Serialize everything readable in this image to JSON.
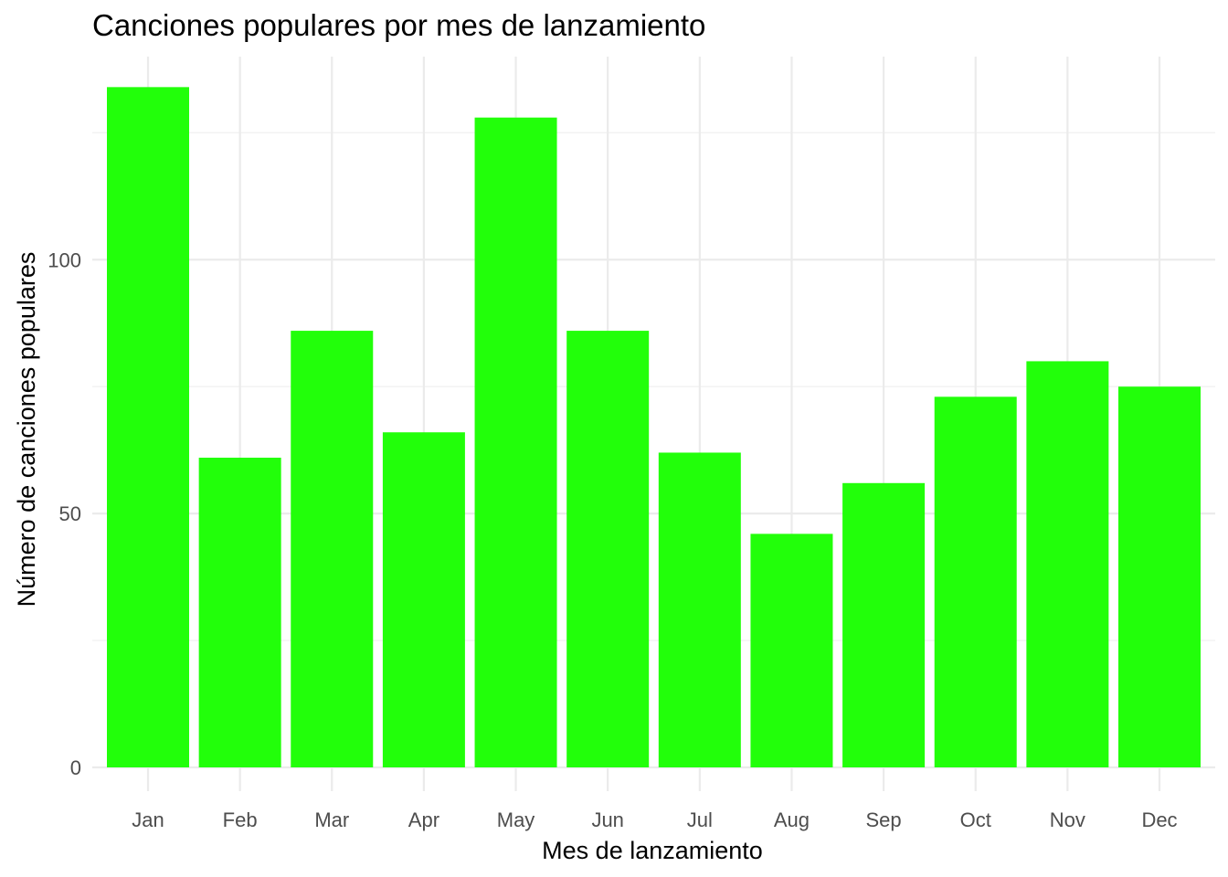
{
  "chart_data": {
    "type": "bar",
    "title": "Canciones populares por mes de lanzamiento",
    "xlabel": "Mes de lanzamiento",
    "ylabel": "Número de canciones populares",
    "categories": [
      "Jan",
      "Feb",
      "Mar",
      "Apr",
      "May",
      "Jun",
      "Jul",
      "Aug",
      "Sep",
      "Oct",
      "Nov",
      "Dec"
    ],
    "values": [
      134,
      61,
      86,
      66,
      128,
      86,
      62,
      46,
      56,
      73,
      80,
      75
    ],
    "ylim": [
      0,
      140
    ],
    "yticks": [
      0,
      50,
      100
    ],
    "yticks_minor": [
      25,
      75,
      125
    ],
    "bar_color": "#22ff0a",
    "grid": true,
    "legend": "none"
  }
}
